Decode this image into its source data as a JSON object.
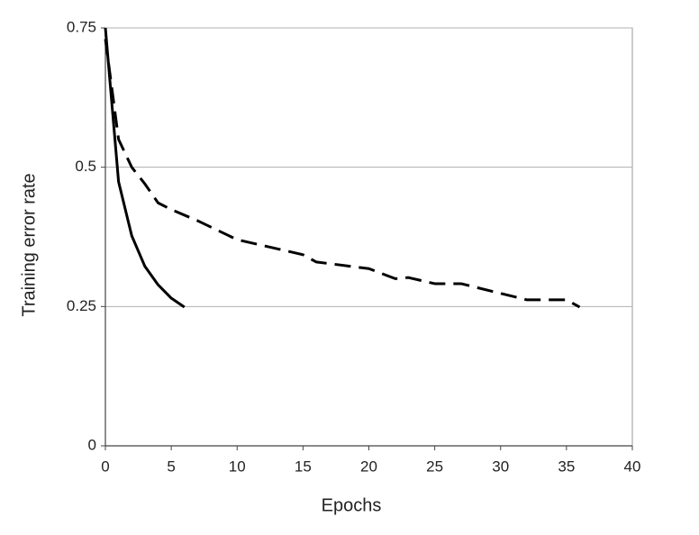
{
  "chart_data": {
    "type": "line",
    "x_label": "Epochs",
    "y_label": "Training error rate",
    "series": [
      {
        "color": "#000000",
        "style": "solid",
        "x": [
          0,
          1,
          2,
          3,
          4,
          5,
          6
        ],
        "values": [
          0.75,
          0.474,
          0.377,
          0.322,
          0.289,
          0.265,
          0.249
        ]
      },
      {
        "color": "#000000",
        "style": "dashed",
        "x": [
          0,
          1,
          2,
          3,
          4,
          5,
          7,
          10,
          15,
          16,
          20,
          22,
          23,
          25,
          27,
          32,
          35,
          36
        ],
        "values": [
          0.73,
          0.55,
          0.5,
          0.47,
          0.436,
          0.424,
          0.404,
          0.37,
          0.343,
          0.33,
          0.318,
          0.3,
          0.302,
          0.291,
          0.291,
          0.262,
          0.262,
          0.249
        ]
      }
    ],
    "xlim": [
      0,
      40
    ],
    "xticks": [
      0,
      5,
      10,
      15,
      20,
      25,
      30,
      35,
      40
    ],
    "ylim": [
      0,
      0.75
    ],
    "yticks": [
      0,
      0.25,
      0.5,
      0.75
    ],
    "grid": true
  }
}
